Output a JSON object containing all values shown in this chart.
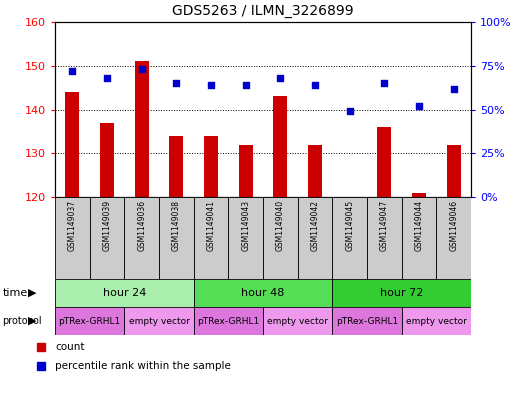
{
  "title": "GDS5263 / ILMN_3226899",
  "samples": [
    "GSM1149037",
    "GSM1149039",
    "GSM1149036",
    "GSM1149038",
    "GSM1149041",
    "GSM1149043",
    "GSM1149040",
    "GSM1149042",
    "GSM1149045",
    "GSM1149047",
    "GSM1149044",
    "GSM1149046"
  ],
  "counts": [
    144,
    137,
    151,
    134,
    134,
    132,
    143,
    132,
    120,
    136,
    121,
    132
  ],
  "percentiles": [
    72,
    68,
    73,
    65,
    64,
    64,
    68,
    64,
    49,
    65,
    52,
    62
  ],
  "ylim_left": [
    120,
    160
  ],
  "ylim_right": [
    0,
    100
  ],
  "yticks_left": [
    120,
    130,
    140,
    150,
    160
  ],
  "yticks_right": [
    0,
    25,
    50,
    75,
    100
  ],
  "bar_color": "#cc0000",
  "dot_color": "#0000cc",
  "bar_bottom": 120,
  "time_groups": [
    {
      "label": "hour 24",
      "start": 0,
      "end": 4,
      "color": "#aaeead"
    },
    {
      "label": "hour 48",
      "start": 4,
      "end": 8,
      "color": "#55dd55"
    },
    {
      "label": "hour 72",
      "start": 8,
      "end": 12,
      "color": "#33cc33"
    }
  ],
  "protocol_groups": [
    {
      "label": "pTRex-GRHL1",
      "start": 0,
      "end": 2,
      "color": "#dd77dd"
    },
    {
      "label": "empty vector",
      "start": 2,
      "end": 4,
      "color": "#ee99ee"
    },
    {
      "label": "pTRex-GRHL1",
      "start": 4,
      "end": 6,
      "color": "#dd77dd"
    },
    {
      "label": "empty vector",
      "start": 6,
      "end": 8,
      "color": "#ee99ee"
    },
    {
      "label": "pTRex-GRHL1",
      "start": 8,
      "end": 10,
      "color": "#dd77dd"
    },
    {
      "label": "empty vector",
      "start": 10,
      "end": 12,
      "color": "#ee99ee"
    }
  ],
  "sample_box_color": "#cccccc",
  "legend_items": [
    {
      "label": "count",
      "color": "#cc0000"
    },
    {
      "label": "percentile rank within the sample",
      "color": "#0000cc"
    }
  ]
}
